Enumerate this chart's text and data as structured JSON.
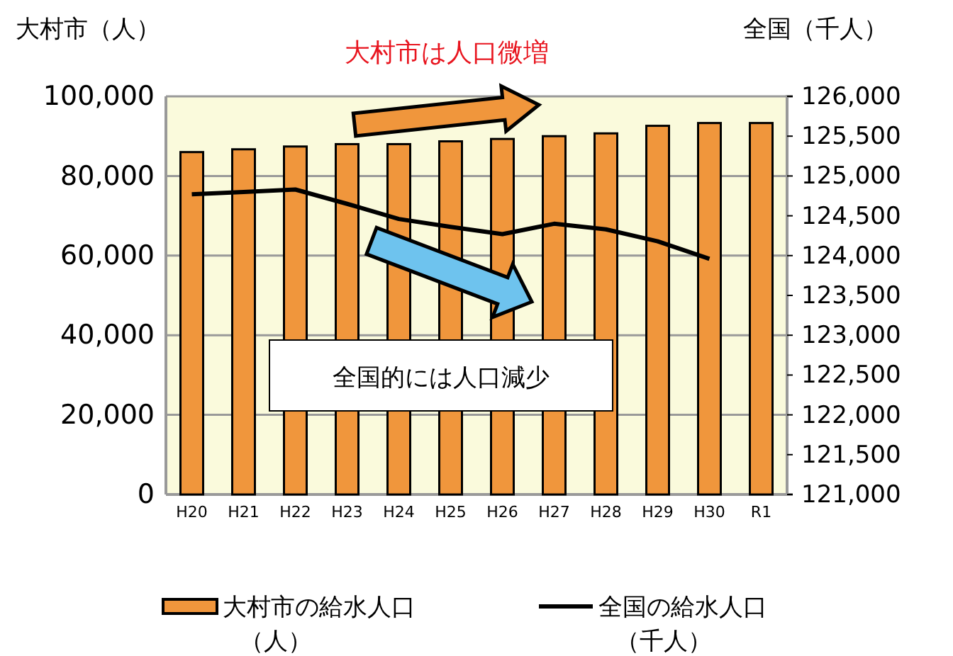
{
  "chart_data": {
    "type": "bar",
    "ylabel": "大村市（人）",
    "y2label": "全国（千人）",
    "categories": [
      "H20",
      "H21",
      "H22",
      "H23",
      "H24",
      "H25",
      "H26",
      "H27",
      "H28",
      "H29",
      "H30",
      "R1"
    ],
    "series": [
      {
        "name": "大村市の給水人口（人）",
        "color": "#f0963c",
        "values": [
          86000,
          86700,
          87400,
          88000,
          88000,
          88700,
          89300,
          90000,
          90700,
          92600,
          93300,
          93300
        ]
      },
      {
        "name": "全国の給水人口（千人）",
        "type": "line",
        "axis": "y2",
        "color": "#000000",
        "values": [
          124770,
          124800,
          124830,
          124650,
          124460,
          124360,
          124270,
          124400,
          124330,
          124180,
          123960,
          null
        ]
      }
    ],
    "ylim": [
      0,
      100000
    ],
    "yticks": [
      {
        "value": 0,
        "label": "0"
      },
      {
        "value": 20000,
        "label": "20,000"
      },
      {
        "value": 40000,
        "label": "40,000"
      },
      {
        "value": 60000,
        "label": "60,000"
      },
      {
        "value": 80000,
        "label": "80,000"
      },
      {
        "value": 100000,
        "label": "100,000"
      }
    ],
    "y2lim": [
      121000,
      126000
    ],
    "y2ticks": [
      {
        "value": 121000,
        "label": "121,000"
      },
      {
        "value": 121500,
        "label": "121,500"
      },
      {
        "value": 122000,
        "label": "122,000"
      },
      {
        "value": 122500,
        "label": "122,500"
      },
      {
        "value": 123000,
        "label": "123,000"
      },
      {
        "value": 123500,
        "label": "123,500"
      },
      {
        "value": 124000,
        "label": "124,000"
      },
      {
        "value": 124500,
        "label": "124,500"
      },
      {
        "value": 125000,
        "label": "125,000"
      },
      {
        "value": 125500,
        "label": "125,500"
      },
      {
        "value": 126000,
        "label": "126,000"
      }
    ],
    "grid": "y",
    "legend": "bottom",
    "marker": "none",
    "line_style": "solid",
    "annotations": [
      "大村市は人口微増",
      "全国的には人口減少"
    ]
  }
}
